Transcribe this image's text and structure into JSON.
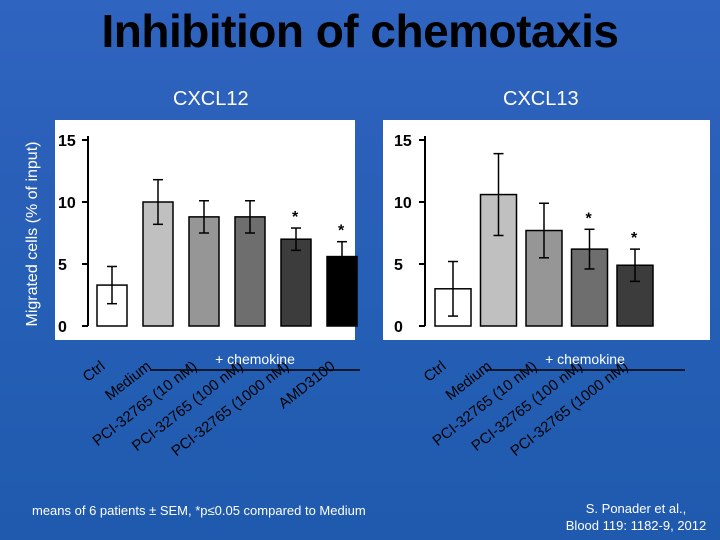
{
  "slide": {
    "title": "Inhibition of chemotaxis",
    "footnote": "means of 6 patients ± SEM, *p≤0.05 compared to Medium",
    "citation_line1": "S. Ponader et al.,",
    "citation_line2": "Blood 119: 1182-9, 2012",
    "y_axis_label": "Migrated cells (% of input)"
  },
  "chart_data": [
    {
      "type": "bar",
      "subtitle": "CXCL12",
      "group_label": "+ chemokine",
      "categories": [
        "Ctrl",
        "Medium",
        "PCI-32765 (10 nM)",
        "PCI-32765 (100 nM)",
        "PCI-32765 (1000 nM)",
        "AMD3100"
      ],
      "values": [
        3.3,
        10.0,
        8.8,
        8.8,
        7.0,
        5.6
      ],
      "errors": [
        1.5,
        1.8,
        1.3,
        1.3,
        0.9,
        1.2
      ],
      "significant": [
        false,
        false,
        false,
        false,
        true,
        true
      ],
      "colors": [
        "#ffffff",
        "#c0c0c0",
        "#969696",
        "#6e6e6e",
        "#3c3c3c",
        "#000000"
      ],
      "yticks": [
        0,
        5,
        10,
        15
      ],
      "ylim": [
        0,
        15
      ],
      "significance_marker": "*"
    },
    {
      "type": "bar",
      "subtitle": "CXCL13",
      "group_label": "+ chemokine",
      "categories": [
        "Ctrl",
        "Medium",
        "PCI-32765 (10 nM)",
        "PCI-32765 (100 nM)",
        "PCI-32765 (1000 nM)"
      ],
      "values": [
        3.0,
        10.6,
        7.7,
        6.2,
        4.9
      ],
      "errors": [
        2.2,
        3.3,
        2.2,
        1.6,
        1.3
      ],
      "significant": [
        false,
        false,
        false,
        true,
        true
      ],
      "colors": [
        "#ffffff",
        "#c0c0c0",
        "#969696",
        "#6e6e6e",
        "#3c3c3c"
      ],
      "yticks": [
        0,
        5,
        10,
        15
      ],
      "ylim": [
        0,
        15
      ],
      "significance_marker": "*"
    }
  ]
}
